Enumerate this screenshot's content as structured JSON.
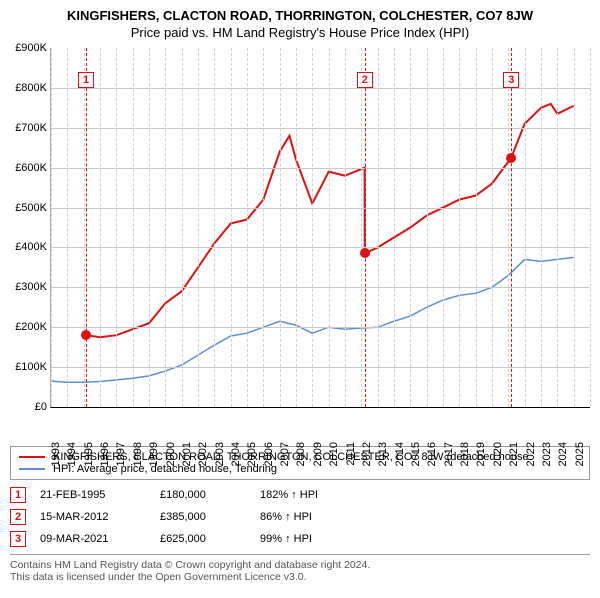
{
  "title": "KINGFISHERS, CLACTON ROAD, THORRINGTON, COLCHESTER, CO7 8JW",
  "subtitle": "Price paid vs. HM Land Registry's House Price Index (HPI)",
  "chart": {
    "type": "line",
    "xlim": [
      1993,
      2026
    ],
    "ylim": [
      0,
      900
    ],
    "y_unit_prefix": "£",
    "y_unit_suffix": "K",
    "ytick_step": 100,
    "xtick_step": 1,
    "grid_color": "#c8c8c8",
    "xgrid_color": "#d0d0d0",
    "background_color": "#ffffff",
    "axis_fontsize": 11,
    "series": [
      {
        "id": "property",
        "label": "KINGFISHERS, CLACTON ROAD, THORRINGTON, COLCHESTER, CO7 8JW (detached house",
        "color": "#e01010",
        "line_width": 2,
        "x": [
          1995.15,
          1996,
          1997,
          1998,
          1999,
          2000,
          2001,
          2002,
          2003,
          2004,
          2005,
          2006,
          2007,
          2007.6,
          2008,
          2009,
          2010,
          2011,
          2012.2,
          2012.21,
          2013,
          2014,
          2015,
          2016,
          2017,
          2018,
          2019,
          2020,
          2021.18,
          2022,
          2023,
          2023.6,
          2024,
          2025
        ],
        "y": [
          180,
          175,
          180,
          195,
          210,
          260,
          290,
          350,
          410,
          460,
          470,
          520,
          640,
          680,
          620,
          510,
          590,
          580,
          600,
          385,
          400,
          425,
          450,
          480,
          500,
          520,
          530,
          560,
          625,
          710,
          750,
          760,
          735,
          755
        ]
      },
      {
        "id": "hpi",
        "label": "HPI: Average price, detached house, Tendring",
        "color": "#5b8fd6",
        "line_width": 1.5,
        "x": [
          1993,
          1994,
          1995,
          1996,
          1997,
          1998,
          1999,
          2000,
          2001,
          2002,
          2003,
          2004,
          2005,
          2006,
          2007,
          2008,
          2009,
          2010,
          2011,
          2012,
          2013,
          2014,
          2015,
          2016,
          2017,
          2018,
          2019,
          2020,
          2021,
          2022,
          2023,
          2024,
          2025
        ],
        "y": [
          65,
          62,
          62,
          64,
          68,
          72,
          78,
          90,
          105,
          130,
          155,
          178,
          185,
          200,
          215,
          205,
          185,
          200,
          195,
          198,
          200,
          215,
          228,
          250,
          268,
          280,
          285,
          300,
          330,
          370,
          365,
          370,
          375
        ]
      }
    ],
    "markers": [
      {
        "n": "1",
        "x": 1995.15,
        "y": 180,
        "box_y": 840
      },
      {
        "n": "2",
        "x": 2012.21,
        "y": 385,
        "box_y": 840
      },
      {
        "n": "3",
        "x": 2021.18,
        "y": 625,
        "box_y": 840
      }
    ],
    "marker_color": "#e01010",
    "marker_dot_size": 10
  },
  "legend": {
    "border_color": "#999999",
    "fontsize": 11
  },
  "sales": [
    {
      "n": "1",
      "date": "21-FEB-1995",
      "price": "£180,000",
      "pct": "182% ↑ HPI"
    },
    {
      "n": "2",
      "date": "15-MAR-2012",
      "price": "£385,000",
      "pct": "86% ↑ HPI"
    },
    {
      "n": "3",
      "date": "09-MAR-2021",
      "price": "£625,000",
      "pct": "99% ↑ HPI"
    }
  ],
  "footer": {
    "line1": "Contains HM Land Registry data © Crown copyright and database right 2024.",
    "line2": "This data is licensed under the Open Government Licence v3.0."
  }
}
